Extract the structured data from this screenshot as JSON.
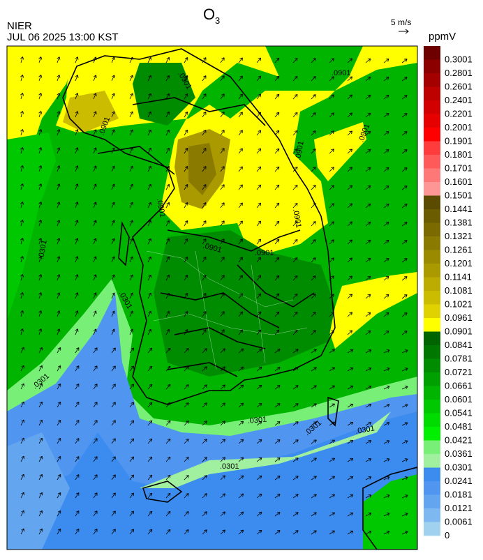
{
  "header": {
    "title": "O",
    "title_sub": "3",
    "agency": "NIER",
    "datetime": "JUL 06 2025 13:00 KST",
    "vector_scale": "5 m/s"
  },
  "colorbar": {
    "unit": "ppmV",
    "levels": [
      0.3001,
      0.2801,
      0.2601,
      0.2401,
      0.2201,
      0.2001,
      0.1901,
      0.1801,
      0.1701,
      0.1601,
      0.1501,
      0.1441,
      0.1381,
      0.1321,
      0.1261,
      0.1201,
      0.1141,
      0.1081,
      0.1021,
      0.0961,
      0.0901,
      0.0841,
      0.0781,
      0.0721,
      0.0661,
      0.0601,
      0.0541,
      0.0481,
      0.0421,
      0.0361,
      0.0301,
      0.0241,
      0.0181,
      0.0121,
      0.0061,
      0
    ],
    "colors": [
      "#6e0000",
      "#8c0000",
      "#a50000",
      "#bd0000",
      "#d20000",
      "#e60000",
      "#ff0000",
      "#ff3c3c",
      "#ff5a5a",
      "#ff7878",
      "#ff9696",
      "#5a4b00",
      "#6b5c00",
      "#7a6a00",
      "#8a7a00",
      "#9a8a00",
      "#aa9a00",
      "#bcab00",
      "#ccbc00",
      "#e0d200",
      "#ffff00",
      "#006400",
      "#007800",
      "#008c00",
      "#00a000",
      "#00b400",
      "#00c800",
      "#00dc00",
      "#00f000",
      "#78f078",
      "#a0f0a0",
      "#3c8cf0",
      "#5096f0",
      "#64a5f0",
      "#7db9f0",
      "#a0d2f0"
    ]
  },
  "contour_labels": [
    ".0901",
    ".0901",
    ".0901",
    ".0901",
    ".0901",
    ".0901",
    ".0901",
    ".0901",
    ".0901",
    ".0301",
    ".0301",
    ".0301",
    ".0301",
    ".0301",
    ".0301",
    ".0301"
  ]
}
